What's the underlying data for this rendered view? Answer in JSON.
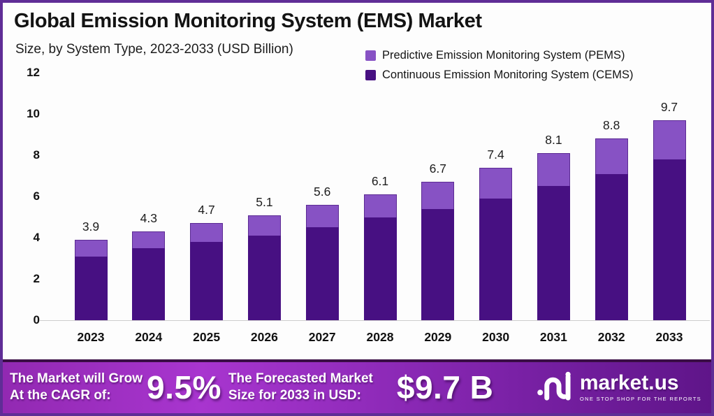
{
  "title": "Global Emission Monitoring System (EMS) Market",
  "subtitle": "Size, by System Type, 2023-2033 (USD Billion)",
  "colors": {
    "pems": "#8752c4",
    "cems": "#471082",
    "frame_border": "#5f2d96",
    "banner_gradient_start": "#a835cf",
    "banner_gradient_end": "#5f1589"
  },
  "chart_data": {
    "type": "bar",
    "stacked": true,
    "categories": [
      "2023",
      "2024",
      "2025",
      "2026",
      "2027",
      "2028",
      "2029",
      "2030",
      "2031",
      "2032",
      "2033"
    ],
    "series": [
      {
        "name": "Continuous Emission Monitoring System (CEMS)",
        "color": "#471082",
        "values": [
          3.1,
          3.5,
          3.8,
          4.1,
          4.5,
          5.0,
          5.4,
          5.9,
          6.5,
          7.1,
          7.8
        ]
      },
      {
        "name": "Predictive Emission Monitoring System (PEMS)",
        "color": "#8752c4",
        "values": [
          0.8,
          0.8,
          0.9,
          1.0,
          1.1,
          1.1,
          1.3,
          1.5,
          1.6,
          1.7,
          1.9
        ]
      }
    ],
    "totals": [
      3.9,
      4.3,
      4.7,
      5.1,
      5.6,
      6.1,
      6.7,
      7.4,
      8.1,
      8.8,
      9.7
    ],
    "total_labels": [
      "3.9",
      "4.3",
      "4.7",
      "5.1",
      "5.6",
      "6.1",
      "6.7",
      "7.4",
      "8.1",
      "8.8",
      "9.7"
    ],
    "y_ticks": [
      0,
      2,
      4,
      6,
      8,
      10,
      12
    ],
    "ylim": [
      0,
      12
    ],
    "grid": false,
    "legend_position": "top-right",
    "legend": [
      {
        "label": "Predictive Emission Monitoring System (PEMS)",
        "color": "#8752c4"
      },
      {
        "label": "Continuous Emission Monitoring System (CEMS)",
        "color": "#471082"
      }
    ]
  },
  "banner": {
    "cagr_label_line1": "The Market will Grow",
    "cagr_label_line2": "At the CAGR of:",
    "cagr_value": "9.5%",
    "forecast_label_line1": "The Forecasted Market",
    "forecast_label_line2": "Size for 2033 in USD:",
    "forecast_value": "$9.7 B",
    "logo_name": "market.us",
    "logo_tagline": "ONE STOP SHOP FOR THE REPORTS"
  }
}
